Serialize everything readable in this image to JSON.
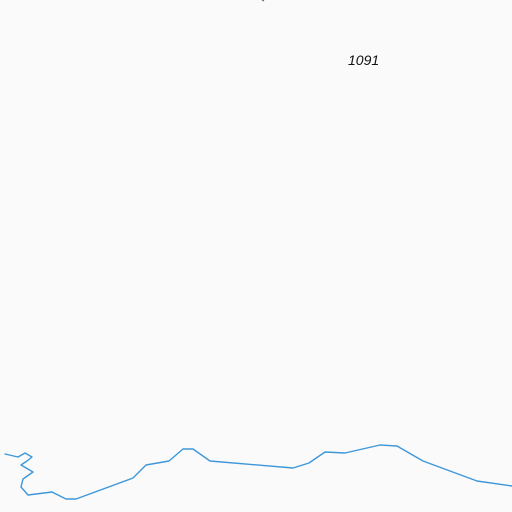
{
  "map": {
    "elevation_label": "1091",
    "colors": {
      "background": "#fafafa",
      "river": "#3d97d9",
      "label_text": "#111111"
    },
    "features": [
      {
        "type": "river",
        "name": ""
      },
      {
        "type": "elevation-point",
        "label": "1091"
      }
    ]
  }
}
